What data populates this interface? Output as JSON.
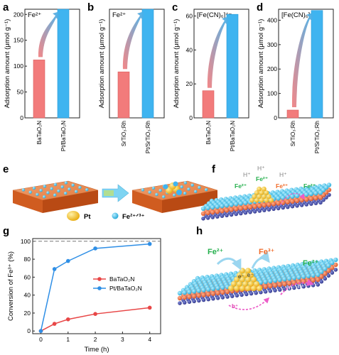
{
  "panels": {
    "a": "a",
    "b": "b",
    "c": "c",
    "d": "d",
    "e": "e",
    "f": "f",
    "g": "g",
    "h": "h"
  },
  "colors": {
    "red_bar": "#f27b7b",
    "blue_bar": "#3fb4f0",
    "red_line": "#e84646",
    "blue_line": "#2f8fe6",
    "slab": "#e0783a",
    "ion": "#31b8e0",
    "pt": "#f3bd1d",
    "fe2_text": "#25b04d",
    "fe3_text": "#f06a28",
    "h_plus": "#888888",
    "hole": "#e040b0"
  },
  "chart_data": [
    {
      "type": "bar",
      "panel": "a",
      "annotation": "Fe²⁺",
      "ylabel": "Adsorption amount (μmol g⁻¹)",
      "categories": [
        "BaTaO₂N",
        "Pt/BaTaO₂N"
      ],
      "values": [
        112,
        210
      ],
      "ylim": [
        0,
        210
      ],
      "yticks": [
        0,
        50,
        100,
        150,
        200
      ]
    },
    {
      "type": "bar",
      "panel": "b",
      "annotation": "Fe²⁺",
      "ylabel": "Adsorption amount (μmol g⁻¹)",
      "categories": [
        "SrTiO₃:Rh",
        "Pt/SrTiO₃:Rh"
      ],
      "values": [
        108,
        255
      ],
      "ylim": [
        0,
        255
      ],
      "yticks": []
    },
    {
      "type": "bar",
      "panel": "c",
      "annotation": "[Fe(CN)₆]⁴⁻",
      "ylabel": "Adsorption amount (μmol g⁻¹)",
      "categories": [
        "BaTaO₂N",
        "Pt/BaTaO₂N"
      ],
      "values": [
        16,
        61
      ],
      "ylim": [
        0,
        64
      ],
      "yticks": [
        0,
        20,
        40,
        60
      ]
    },
    {
      "type": "bar",
      "panel": "d",
      "annotation": "[Fe(CN)₆]⁴⁻",
      "ylabel": "Adsorption amount (μmol g⁻¹)",
      "categories": [
        "SrTiO₃:Rh",
        "Pt/SrTiO₃:Rh"
      ],
      "values": [
        32,
        440
      ],
      "ylim": [
        0,
        445
      ],
      "yticks": [
        0,
        100,
        200,
        300,
        400
      ]
    },
    {
      "type": "line",
      "panel": "g",
      "xlabel": "Time (h)",
      "ylabel": "Conversion of Fe³⁺ (%)",
      "xlim": [
        -0.3,
        4.4
      ],
      "ylim": [
        -3,
        103
      ],
      "xticks": [
        0,
        1,
        2,
        3,
        4
      ],
      "yticks": [
        0,
        20,
        40,
        60,
        80,
        100
      ],
      "dashed_line_y": 100,
      "legend_position": "middle-right",
      "series": [
        {
          "name": "BaTaO₂N",
          "x": [
            0,
            0.5,
            1,
            2,
            4
          ],
          "y": [
            0,
            8,
            13,
            19,
            26
          ]
        },
        {
          "name": "Pt/BaTaO₂N",
          "x": [
            0,
            0.5,
            1,
            2,
            4
          ],
          "y": [
            0,
            69,
            78,
            92,
            97
          ]
        }
      ]
    }
  ],
  "schematic_e": {
    "legend_pt": "Pt",
    "legend_fe": "Fe²⁺ᐟ³⁺"
  },
  "schematic_f": {
    "h_plus": "H⁺",
    "fe2": "Fe²⁺",
    "fe3": "Fe³⁺"
  },
  "schematic_h": {
    "fe2": "Fe²⁺",
    "fe3": "Fe³⁺",
    "electron": "e⁻",
    "hole": "h⁺"
  }
}
